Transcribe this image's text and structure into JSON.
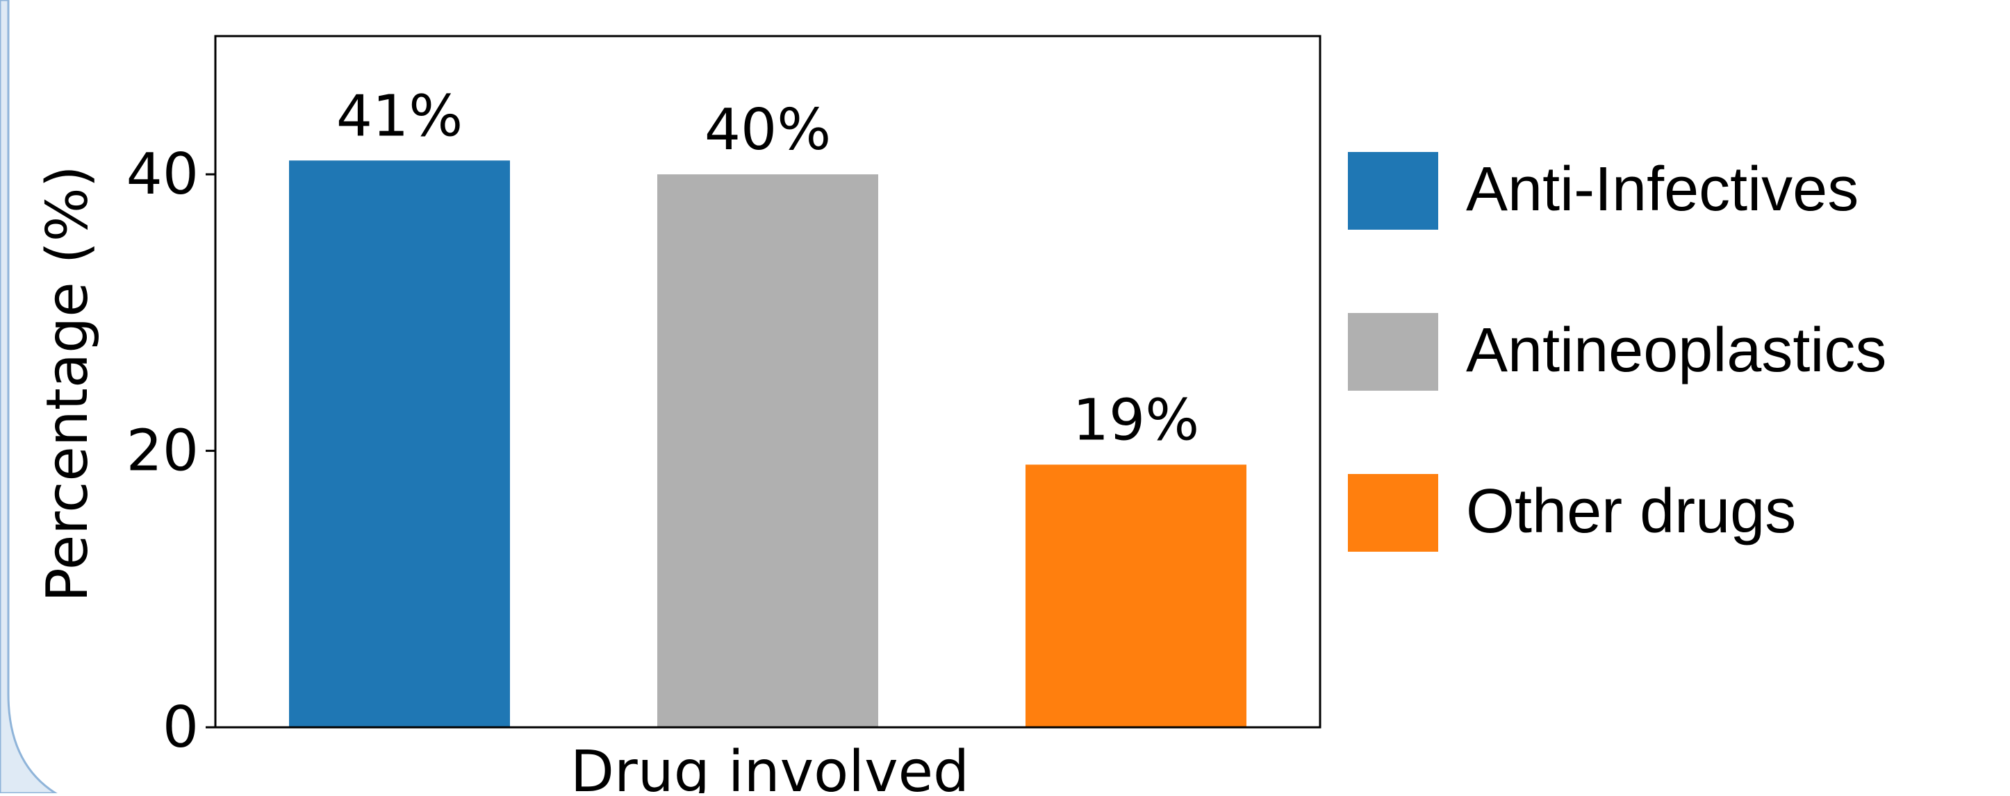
{
  "chart_data": {
    "type": "bar",
    "categories": [
      "Anti-Infectives",
      "Antineoplastics",
      "Other drugs"
    ],
    "values": [
      41,
      40,
      19
    ],
    "data_labels": [
      "41%",
      "40%",
      "19%"
    ],
    "colors": [
      "#1f77b4",
      "#b0b0b0",
      "#ff7f0e"
    ],
    "title": "",
    "xlabel": "Drug involved",
    "ylabel": "Percentage (%)",
    "ylim": [
      0,
      50
    ],
    "yticks": [
      0,
      20,
      40
    ],
    "ytick_labels": [
      "0",
      "20",
      "40"
    ],
    "grid": false,
    "legend": {
      "placement": "right",
      "entries": [
        "Anti-Infectives",
        "Antineoplastics",
        "Other drugs"
      ]
    }
  },
  "decoration": {
    "frame_color": "#8fb4d9",
    "frame_fill": "#dfeaf5"
  }
}
